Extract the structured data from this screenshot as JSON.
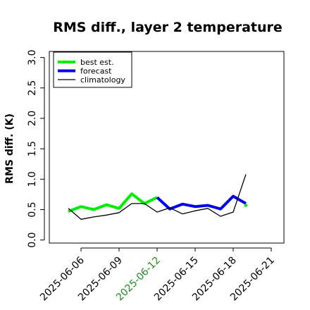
{
  "chart_data": {
    "type": "line",
    "title": "RMS diff., layer 2 temperature",
    "xlabel": "",
    "ylabel": "RMS diff. (K)",
    "ylim": [
      -0.05,
      3.1
    ],
    "xlim": [
      "2025-06-03T12:00",
      "2025-06-22T00:00"
    ],
    "yticks": [
      "0.0",
      "0.5",
      "1.0",
      "1.5",
      "2.0",
      "2.5",
      "3.0"
    ],
    "xticks": [
      {
        "date": "2025-06-06",
        "label": "2025-06-06",
        "color": "#000000"
      },
      {
        "date": "2025-06-09",
        "label": "2025-06-09",
        "color": "#000000"
      },
      {
        "date": "2025-06-12",
        "label": "2025-06-12",
        "color": "#228B22"
      },
      {
        "date": "2025-06-15",
        "label": "2025-06-15",
        "color": "#000000"
      },
      {
        "date": "2025-06-18",
        "label": "2025-06-18",
        "color": "#000000"
      },
      {
        "date": "2025-06-21",
        "label": "2025-06-21",
        "color": "#000000"
      }
    ],
    "grid": false,
    "legend_position": "top-left",
    "series": [
      {
        "name": "best est.",
        "color": "#00ee00",
        "style": "thick",
        "x": [
          "2025-06-05T00:00",
          "2025-06-06T00:00",
          "2025-06-07T00:00",
          "2025-06-08T00:00",
          "2025-06-09T00:00",
          "2025-06-10T00:00",
          "2025-06-11T00:00",
          "2025-06-12T00:00"
        ],
        "y": [
          0.47,
          0.55,
          0.5,
          0.58,
          0.52,
          0.76,
          0.6,
          0.7
        ]
      },
      {
        "name": "forecast",
        "color": "#0000ee",
        "style": "thick",
        "x": [
          "2025-06-12T00:00",
          "2025-06-13T00:00",
          "2025-06-14T00:00",
          "2025-06-15T00:00",
          "2025-06-16T00:00",
          "2025-06-17T00:00",
          "2025-06-18T00:00",
          "2025-06-19T00:00"
        ],
        "y": [
          0.7,
          0.51,
          0.59,
          0.55,
          0.57,
          0.51,
          0.72,
          0.6
        ]
      },
      {
        "name": "climatology",
        "color": "#000000",
        "style": "thin",
        "x": [
          "2025-06-05T00:00",
          "2025-06-06T00:00",
          "2025-06-07T00:00",
          "2025-06-08T00:00",
          "2025-06-09T00:00",
          "2025-06-10T00:00",
          "2025-06-11T00:00",
          "2025-06-12T00:00",
          "2025-06-13T00:00",
          "2025-06-14T00:00",
          "2025-06-15T00:00",
          "2025-06-16T00:00",
          "2025-06-17T00:00",
          "2025-06-18T00:00",
          "2025-06-19T00:00"
        ],
        "y": [
          0.52,
          0.34,
          0.38,
          0.41,
          0.45,
          0.6,
          0.6,
          0.46,
          0.53,
          0.43,
          0.48,
          0.52,
          0.39,
          0.46,
          1.08
        ]
      }
    ],
    "end_markers": [
      {
        "series": "best est.",
        "x": "2025-06-19T00:00",
        "y": 0.57,
        "color": "#00ee00"
      }
    ]
  }
}
